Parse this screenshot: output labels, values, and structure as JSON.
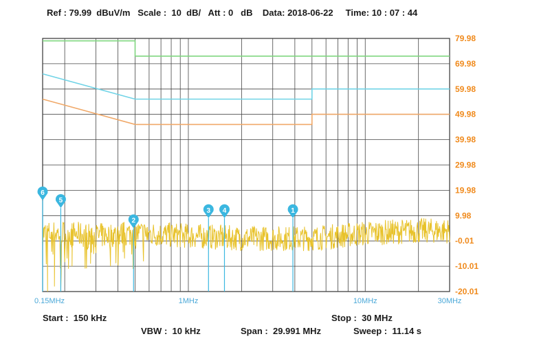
{
  "header": {
    "ref_label": "Ref",
    "ref_value": "79.99",
    "ref_unit": "dBuV/m",
    "scale_label": "Scale",
    "scale_value": "10",
    "scale_unit": "dB/",
    "att_label": "Att",
    "att_value": "0",
    "att_unit": "dB",
    "date_label": "Data",
    "date_value": "2018-06-22",
    "time_label": "Time",
    "time_value": "10 : 07 : 44"
  },
  "footer": {
    "start_label": "Start",
    "start_value": "150 kHz",
    "stop_label": "Stop",
    "stop_value": "30 MHz",
    "vbw_label": "VBW",
    "vbw_value": "10 kHz",
    "span_label": "Span",
    "span_value": "29.991 MHz",
    "sweep_label": "Sweep",
    "sweep_value": "11.14 s"
  },
  "colors": {
    "trace": "#e8c22a",
    "limit_green": "#7fd67f",
    "limit_cyan": "#6fd3e6",
    "limit_orange": "#f0a868",
    "y_tick_labels": "#f08a1c",
    "x_tick_labels": "#4aa8d8",
    "marker": "#3bb7e0",
    "grid": "#444444"
  },
  "chart_data": {
    "type": "line",
    "x_scale": "log",
    "xlim_mhz": [
      0.15,
      30
    ],
    "ylim_dbuv": [
      -20.01,
      79.98
    ],
    "y_ticks": [
      "79.98",
      "69.98",
      "59.98",
      "49.98",
      "39.98",
      "29.98",
      "19.98",
      "9.98",
      "-0.01",
      "-10.01",
      "-20.01"
    ],
    "x_ticks": [
      {
        "label": "0.15MHz",
        "value": 0.15
      },
      {
        "label": "1MHz",
        "value": 1
      },
      {
        "label": "10MHz",
        "value": 10
      },
      {
        "label": "30MHz",
        "value": 30
      }
    ],
    "limit_lines": [
      {
        "color": "green",
        "points": [
          [
            0.15,
            79
          ],
          [
            0.5,
            79
          ],
          [
            0.5,
            73
          ],
          [
            30,
            73
          ]
        ]
      },
      {
        "color": "cyan",
        "points": [
          [
            0.15,
            66
          ],
          [
            0.5,
            56
          ],
          [
            5,
            56
          ],
          [
            5,
            60
          ],
          [
            30,
            60
          ]
        ]
      },
      {
        "color": "orange",
        "points": [
          [
            0.15,
            56
          ],
          [
            0.5,
            46
          ],
          [
            5,
            46
          ],
          [
            5,
            50
          ],
          [
            30,
            50
          ]
        ]
      }
    ],
    "trace_envelope": [
      [
        0.15,
        3
      ],
      [
        0.2,
        3
      ],
      [
        0.3,
        2
      ],
      [
        0.5,
        3
      ],
      [
        1,
        2
      ],
      [
        2,
        1
      ],
      [
        3,
        1
      ],
      [
        5,
        1
      ],
      [
        10,
        3
      ],
      [
        20,
        4
      ],
      [
        30,
        4
      ]
    ],
    "trace_dips": [
      [
        0.16,
        -20
      ],
      [
        0.175,
        -18
      ],
      [
        0.19,
        -20
      ],
      [
        0.21,
        -11
      ],
      [
        0.22,
        -10
      ],
      [
        0.28,
        -9
      ],
      [
        0.4,
        -8
      ]
    ],
    "markers": [
      {
        "id": "6",
        "freq_mhz": 0.15,
        "level_dbuv": 16
      },
      {
        "id": "5",
        "freq_mhz": 0.19,
        "level_dbuv": 13
      },
      {
        "id": "2",
        "freq_mhz": 0.49,
        "level_dbuv": 5
      },
      {
        "id": "3",
        "freq_mhz": 1.3,
        "level_dbuv": 9
      },
      {
        "id": "4",
        "freq_mhz": 1.6,
        "level_dbuv": 9
      },
      {
        "id": "1",
        "freq_mhz": 3.9,
        "level_dbuv": 9
      }
    ]
  }
}
